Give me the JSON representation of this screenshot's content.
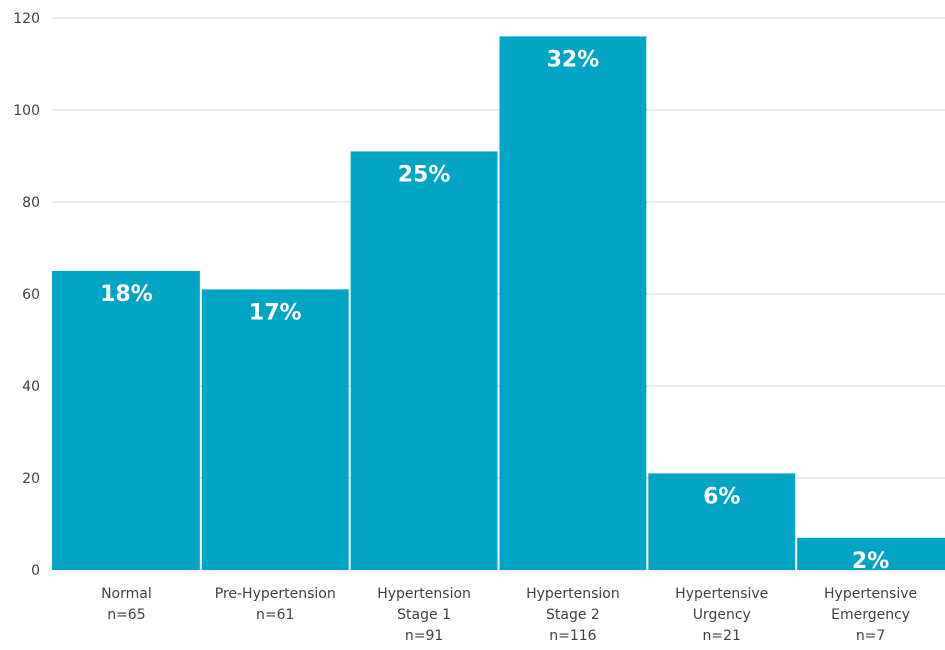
{
  "colors": {
    "bar": "#00a4c4",
    "gridline": "#d9d9d9",
    "axis_text": "#404040",
    "label_text": "#ffffff"
  },
  "chart_data": {
    "type": "bar",
    "categories": [
      [
        "Normal",
        "n=65"
      ],
      [
        "Pre-Hypertension",
        "n=61"
      ],
      [
        "Hypertension",
        "Stage 1",
        "n=91"
      ],
      [
        "Hypertension",
        "Stage 2",
        "n=116"
      ],
      [
        "Hypertensive",
        "Urgency",
        "n=21"
      ],
      [
        "Hypertensive",
        "Emergency",
        "n=7"
      ]
    ],
    "values": [
      65,
      61,
      91,
      116,
      21,
      7
    ],
    "data_labels": [
      "18%",
      "17%",
      "25%",
      "32%",
      "6%",
      "2%"
    ],
    "yticks": [
      0,
      20,
      40,
      60,
      80,
      100,
      120
    ],
    "ylim": [
      0,
      120
    ],
    "grid": true,
    "legend": "none"
  }
}
